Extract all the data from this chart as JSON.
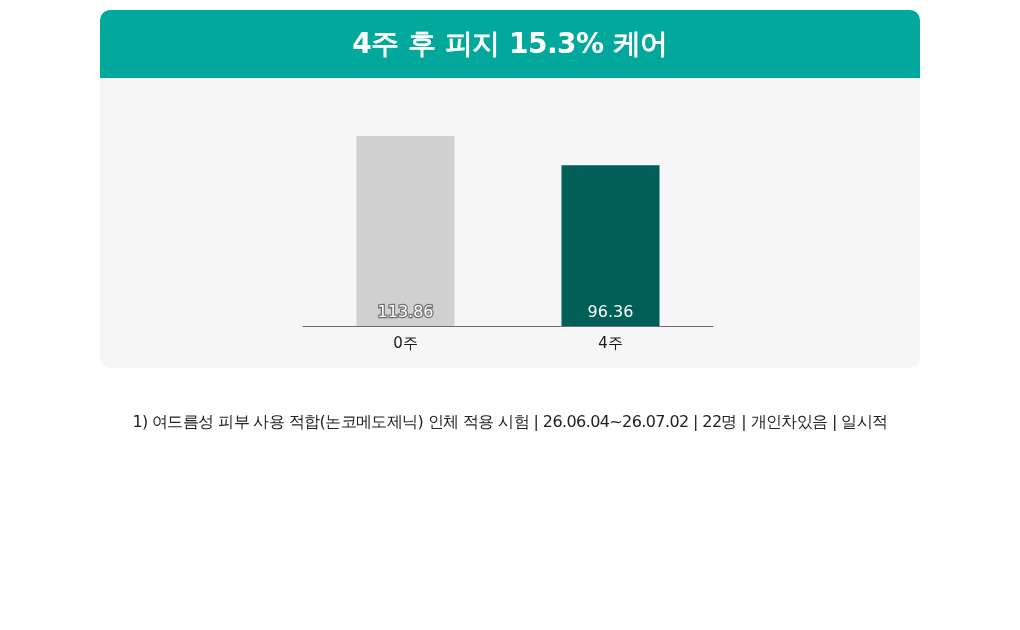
{
  "chart_data": {
    "type": "bar",
    "title": "4주 후 피지 15.3% 케어",
    "categories": [
      "0주",
      "4주"
    ],
    "values": [
      113.86,
      96.36
    ],
    "colors": [
      "#d0d0d0",
      "#005f56"
    ],
    "data_labels": true,
    "grid": false,
    "tick_labels": "x",
    "annotations": [
      "1) 여드름성 피부 사용 적합(논코메도제닉) 인체 적용 시험 | 26.06.04~26.07.02 | 22명 | 개인차있음 | 일시적"
    ]
  }
}
